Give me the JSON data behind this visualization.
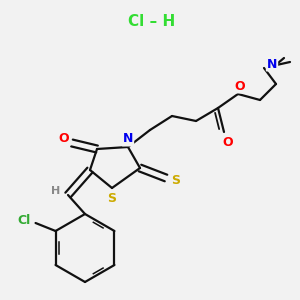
{
  "background_color": "#f2f2f2",
  "hcl_label": "Cl – H",
  "hcl_color": "#33dd33",
  "atom_colors": {
    "O": "#ff0000",
    "N": "#0000ee",
    "S": "#ccaa00",
    "Cl": "#33aa33",
    "H": "#888888",
    "C": "#111111"
  },
  "bond_color": "#111111",
  "bond_width": 1.6,
  "figsize": [
    3.0,
    3.0
  ],
  "dpi": 100
}
